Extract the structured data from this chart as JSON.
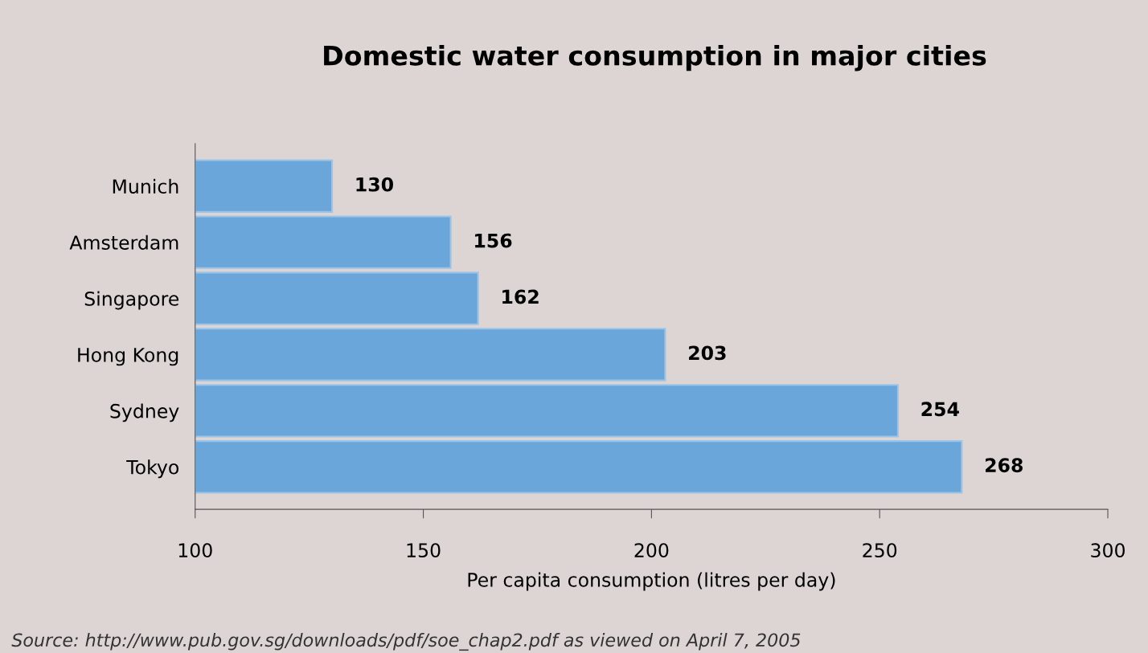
{
  "chart_data": {
    "type": "bar",
    "orientation": "horizontal",
    "title": "Domestic water consumption in major cities",
    "xlabel": "Per capita consumption (litres per day)",
    "categories": [
      "Munich",
      "Amsterdam",
      "Singapore",
      "Hong Kong",
      "Sydney",
      "Tokyo"
    ],
    "values": [
      130,
      156,
      162,
      203,
      254,
      268
    ],
    "color": "#6aa6da",
    "data_labels": true,
    "xlim": [
      100,
      300
    ],
    "xticks": [
      100,
      150,
      200,
      250,
      300
    ],
    "grid": false,
    "annotations": [
      "Source: http://www.pub.gov.sg/downloads/pdf/soe_chap2.pdf as viewed on April 7, 2005"
    ]
  }
}
